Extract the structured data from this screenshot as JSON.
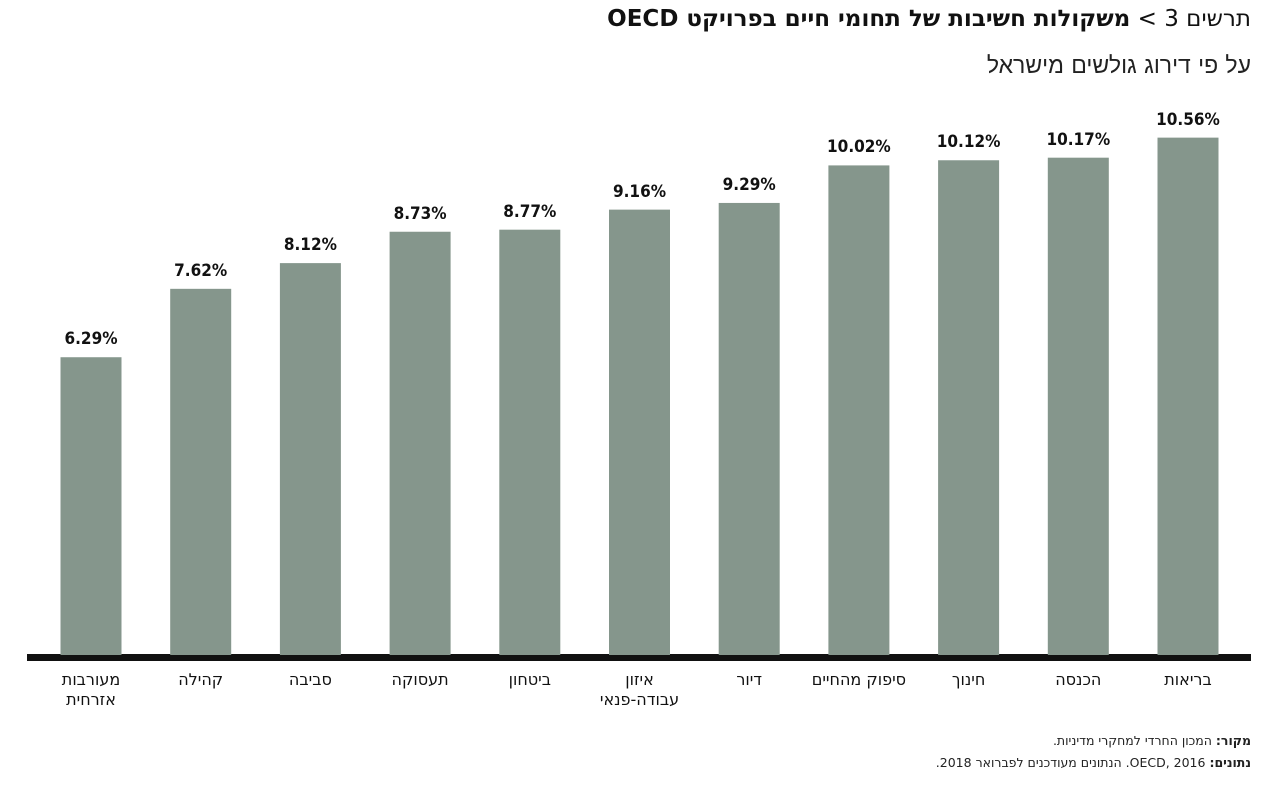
{
  "chart_data": {
    "type": "bar",
    "chart_label": "תרשים 3 >",
    "title": "משקולות חשיבות של תחומי חיים בפרויקט OECD",
    "subtitle": "על פי דירוג גולשים מישראל",
    "categories": [
      "בריאות",
      "הכנסה",
      "חינוך",
      "סיפוק מהחיים",
      "דיור",
      "איזון עבודה-פנאי",
      "ביטחון",
      "תעסוקה",
      "סביבה",
      "קהילה",
      "מעורבות אזרחית"
    ],
    "values": [
      10.56,
      10.17,
      10.12,
      10.02,
      9.29,
      9.16,
      8.77,
      8.73,
      8.12,
      7.62,
      6.29
    ],
    "value_labels": [
      "10.56%",
      "10.17%",
      "10.12%",
      "10.02%",
      "9.29%",
      "9.16%",
      "8.77%",
      "8.73%",
      "8.12%",
      "7.62%",
      "6.29%"
    ],
    "color": "#85968c",
    "ylim": [
      0.5,
      11
    ],
    "source_label": "מקור:",
    "source": "המכון החרדי למחקרי מדיניות.",
    "data_label": "נתונים:",
    "data_note": "OECD, 2016. הנתונים מעודכנים לפברואר 2018."
  }
}
